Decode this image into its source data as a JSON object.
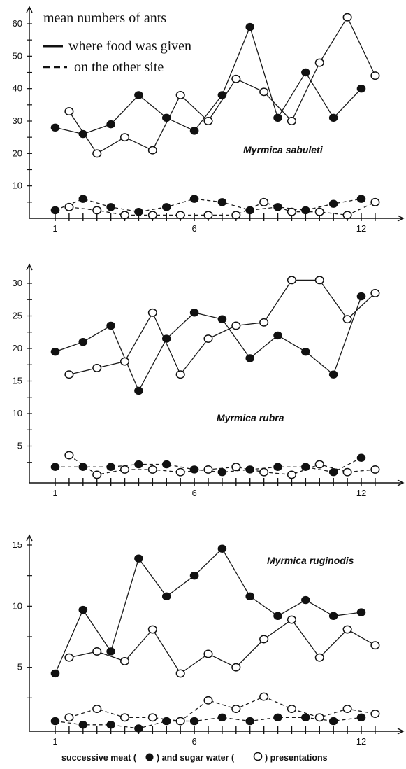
{
  "legend": {
    "title": "mean numbers of ants",
    "solid_label": "where food was given",
    "dashed_label": "on the other site"
  },
  "caption": {
    "prefix": "successive meat (",
    "middle": ") and sugar water (",
    "suffix": ") presentations"
  },
  "colors": {
    "line": "#1a1a1a",
    "filled_marker": "#111111",
    "open_marker": "#ffffff"
  },
  "chart_data": [
    {
      "type": "line",
      "title": "Myrmica sabuleti",
      "x_ticks": [
        "1",
        "6",
        "12"
      ],
      "ylim": [
        0,
        65
      ],
      "y_ticks": [
        "10",
        "20",
        "30",
        "40",
        "50",
        "60"
      ],
      "series": [
        {
          "kind": "meat",
          "style": "solid",
          "marker": "filled",
          "x": [
            1,
            2,
            3,
            4,
            5,
            6,
            7,
            8,
            9,
            10,
            11,
            12
          ],
          "y": [
            28,
            26,
            29,
            38,
            31,
            27,
            38,
            59,
            31,
            45,
            31,
            40
          ]
        },
        {
          "kind": "sugar",
          "style": "solid",
          "marker": "open",
          "x": [
            1.5,
            2.5,
            3.5,
            4.5,
            5.5,
            6.5,
            7.5,
            8.5,
            9.5,
            10.5,
            11.5,
            12.5
          ],
          "y": [
            33,
            20,
            25,
            21,
            38,
            30,
            43,
            39,
            30,
            48,
            62,
            44
          ]
        },
        {
          "kind": "meat",
          "style": "dashed",
          "marker": "filled",
          "x": [
            1,
            2,
            3,
            4,
            5,
            6,
            7,
            8,
            9,
            10,
            11,
            12
          ],
          "y": [
            2.5,
            6,
            3.5,
            2,
            3.5,
            6,
            5,
            2.5,
            3.5,
            2.5,
            4.5,
            6
          ]
        },
        {
          "kind": "sugar",
          "style": "dashed",
          "marker": "open",
          "x": [
            1.5,
            2.5,
            3.5,
            4.5,
            5.5,
            6.5,
            7.5,
            8.5,
            9.5,
            10.5,
            11.5,
            12.5
          ],
          "y": [
            3.5,
            2.5,
            1,
            1,
            1,
            1,
            1,
            5,
            2,
            2,
            1,
            5
          ]
        }
      ]
    },
    {
      "type": "line",
      "title": "Myrmica rubra",
      "x_ticks": [
        "1",
        "6",
        "12"
      ],
      "ylim": [
        0,
        33
      ],
      "y_ticks": [
        "5",
        "10",
        "15",
        "20",
        "25",
        "30"
      ],
      "series": [
        {
          "kind": "meat",
          "style": "solid",
          "marker": "filled",
          "x": [
            1,
            2,
            3,
            4,
            5,
            6,
            7,
            8,
            9,
            10,
            11,
            12
          ],
          "y": [
            19.5,
            21,
            23.5,
            13.5,
            21.5,
            25.5,
            24.5,
            18.5,
            22,
            19.5,
            16,
            28
          ]
        },
        {
          "kind": "sugar",
          "style": "solid",
          "marker": "open",
          "x": [
            1.5,
            2.5,
            3.5,
            4.5,
            5.5,
            6.5,
            7.5,
            8.5,
            9.5,
            10.5,
            11.5,
            12.5
          ],
          "y": [
            16,
            17,
            18,
            25.5,
            16,
            21.5,
            23.5,
            24,
            30.5,
            30.5,
            24.5,
            28.5
          ]
        },
        {
          "kind": "meat",
          "style": "dashed",
          "marker": "filled",
          "x": [
            1,
            2,
            3,
            4,
            5,
            6,
            7,
            8,
            9,
            10,
            11,
            12
          ],
          "y": [
            1.8,
            1.8,
            1.8,
            2.2,
            2.2,
            1.4,
            1,
            1.4,
            1.8,
            1.8,
            1,
            3.2
          ]
        },
        {
          "kind": "sugar",
          "style": "dashed",
          "marker": "open",
          "x": [
            1.5,
            2.5,
            3.5,
            4.5,
            5.5,
            6.5,
            7.5,
            8.5,
            9.5,
            10.5,
            11.5,
            12.5
          ],
          "y": [
            3.6,
            0.6,
            1.4,
            1.4,
            1,
            1.4,
            1.8,
            1,
            0.6,
            2.2,
            1,
            1.4
          ]
        }
      ]
    },
    {
      "type": "line",
      "title": "Myrmica ruginodis",
      "x_ticks": [
        "1",
        "6",
        "12"
      ],
      "ylim": [
        0,
        16
      ],
      "y_ticks": [
        "5",
        "10",
        "15"
      ],
      "series": [
        {
          "kind": "meat",
          "style": "solid",
          "marker": "filled",
          "x": [
            1,
            2,
            3,
            4,
            5,
            6,
            7,
            8,
            9,
            10,
            11,
            12
          ],
          "y": [
            4.5,
            9.7,
            6.3,
            13.9,
            10.8,
            12.5,
            14.7,
            10.8,
            9.2,
            10.5,
            9.2,
            9.5
          ]
        },
        {
          "kind": "sugar",
          "style": "solid",
          "marker": "open",
          "x": [
            1.5,
            2.5,
            3.5,
            4.5,
            5.5,
            6.5,
            7.5,
            8.5,
            9.5,
            10.5,
            11.5,
            12.5
          ],
          "y": [
            5.8,
            6.3,
            5.5,
            8.1,
            4.5,
            6.1,
            5,
            7.3,
            8.9,
            5.8,
            8.1,
            6.8
          ]
        },
        {
          "kind": "meat",
          "style": "dashed",
          "marker": "filled",
          "x": [
            1,
            2,
            3,
            4,
            5,
            6,
            7,
            8,
            9,
            10,
            11,
            12
          ],
          "y": [
            0.6,
            0.3,
            0.3,
            0,
            0.6,
            0.6,
            0.9,
            0.6,
            0.9,
            0.9,
            0.6,
            0.9
          ]
        },
        {
          "kind": "sugar",
          "style": "dashed",
          "marker": "open",
          "x": [
            1.5,
            2.5,
            3.5,
            4.5,
            5.5,
            6.5,
            7.5,
            8.5,
            9.5,
            10.5,
            11.5,
            12.5
          ],
          "y": [
            0.9,
            1.6,
            0.9,
            0.9,
            0.6,
            2.3,
            1.6,
            2.6,
            1.6,
            0.9,
            1.6,
            1.2
          ]
        }
      ]
    }
  ]
}
